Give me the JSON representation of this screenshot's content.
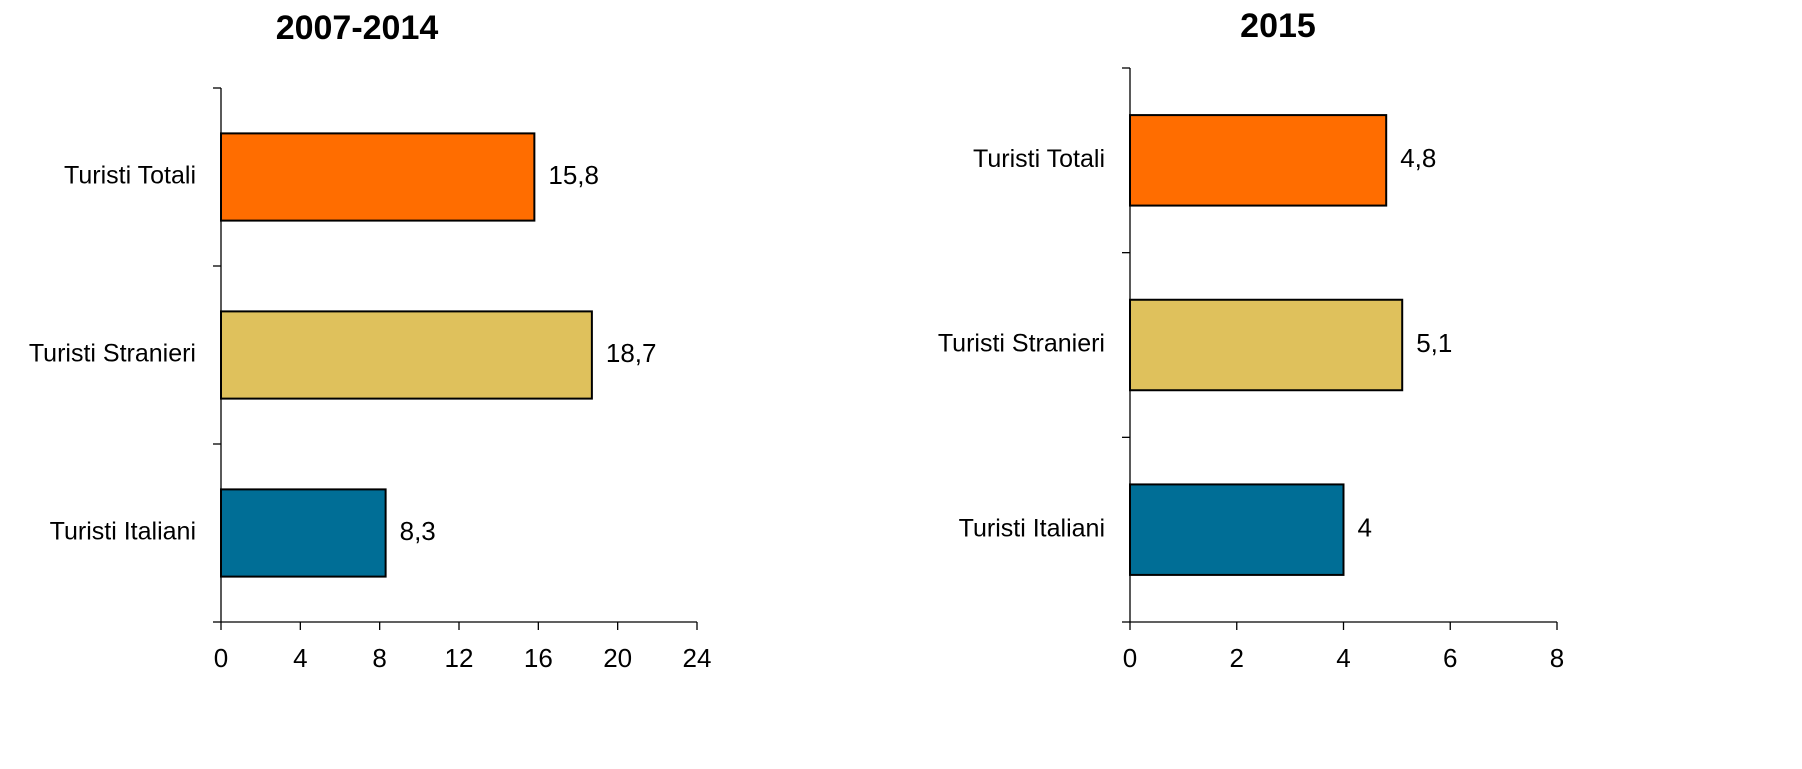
{
  "chart_data": [
    {
      "type": "bar",
      "orientation": "horizontal",
      "title": "2007-2014",
      "categories": [
        "Turisti Totali",
        "Turisti Stranieri",
        "Turisti Italiani"
      ],
      "values": [
        15.8,
        18.7,
        8.3
      ],
      "value_labels": [
        "15,8",
        "18,7",
        "8,3"
      ],
      "colors": [
        "#ff6d00",
        "#dfc15c",
        "#006e96"
      ],
      "xlim": [
        0,
        24
      ],
      "xticks": [
        0,
        4,
        8,
        12,
        16,
        20,
        24
      ]
    },
    {
      "type": "bar",
      "orientation": "horizontal",
      "title": "2015",
      "categories": [
        "Turisti Totali",
        "Turisti Stranieri",
        "Turisti Italiani"
      ],
      "values": [
        4.8,
        5.1,
        4
      ],
      "value_labels": [
        "4,8",
        "5,1",
        "4"
      ],
      "colors": [
        "#ff6d00",
        "#dfc15c",
        "#006e96"
      ],
      "xlim": [
        0,
        8
      ],
      "xticks": [
        0,
        2,
        4,
        6,
        8
      ]
    }
  ]
}
